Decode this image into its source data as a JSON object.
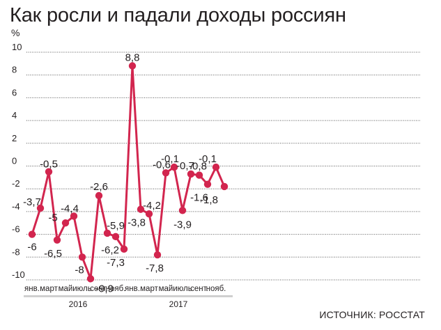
{
  "title": "Как росли и падали доходы россиян",
  "unit": "%",
  "source": "ИСТОЧНИК: РОССТАТ",
  "colors": {
    "line": "#d2254e",
    "grid": "#555555",
    "year_bar": "#cfcfcf"
  },
  "chart_data": {
    "type": "line",
    "title": "Как росли и падали доходы россиян",
    "ylabel": "%",
    "ylim": [
      -10,
      10
    ],
    "yticks": [
      10,
      8,
      6,
      4,
      2,
      0,
      -2,
      -4,
      -6,
      -8,
      -10
    ],
    "grid": true,
    "x": [
      "янв. 2016",
      "фев. 2016",
      "март 2016",
      "апр. 2016",
      "май 2016",
      "июнь 2016",
      "июль 2016",
      "авг. 2016",
      "сент. 2016",
      "окт. 2016",
      "нояб. 2016",
      "дек. 2016",
      "янв. 2017",
      "фев. 2017",
      "март 2017",
      "апр. 2017",
      "май 2017",
      "июнь 2017",
      "июль 2017",
      "авг. 2017",
      "сент. 2017",
      "окт. 2017",
      "нояб. 2017",
      "дек. 2017"
    ],
    "values": [
      -6,
      -3.7,
      -0.5,
      -6.5,
      -5,
      -4.4,
      -8,
      -9.9,
      -2.6,
      -5.9,
      -6.2,
      -7.3,
      8.8,
      -3.8,
      -4.2,
      -7.8,
      -0.6,
      -0.1,
      -3.9,
      -0.7,
      -0.8,
      -1.6,
      -0.1,
      -1.8
    ],
    "data_labels": [
      "-6",
      "-3,7",
      "-0,5",
      "-6,5",
      "-5",
      "-4,4",
      "-8",
      "-9,9",
      "-2,6",
      "-5,9",
      "-6,2",
      "-7,3",
      "8,8",
      "-3,8",
      "-4,2",
      "-7,8",
      "-0,6",
      "-0,1",
      "-3,9",
      "-0,7",
      "-0,8",
      "-1,6",
      "-0,1",
      "-1,8"
    ],
    "xtick_labels": [
      "янв.",
      "",
      "март",
      "",
      "май",
      "",
      "июль",
      "",
      "сент.",
      "",
      "нояб.",
      "",
      "янв.",
      "",
      "март",
      "",
      "май",
      "",
      "июль",
      "",
      "сент.",
      "",
      "нояб.",
      ""
    ],
    "years": [
      {
        "label": "2016",
        "from": 0,
        "to": 11
      },
      {
        "label": "2017",
        "from": 12,
        "to": 23
      }
    ]
  }
}
